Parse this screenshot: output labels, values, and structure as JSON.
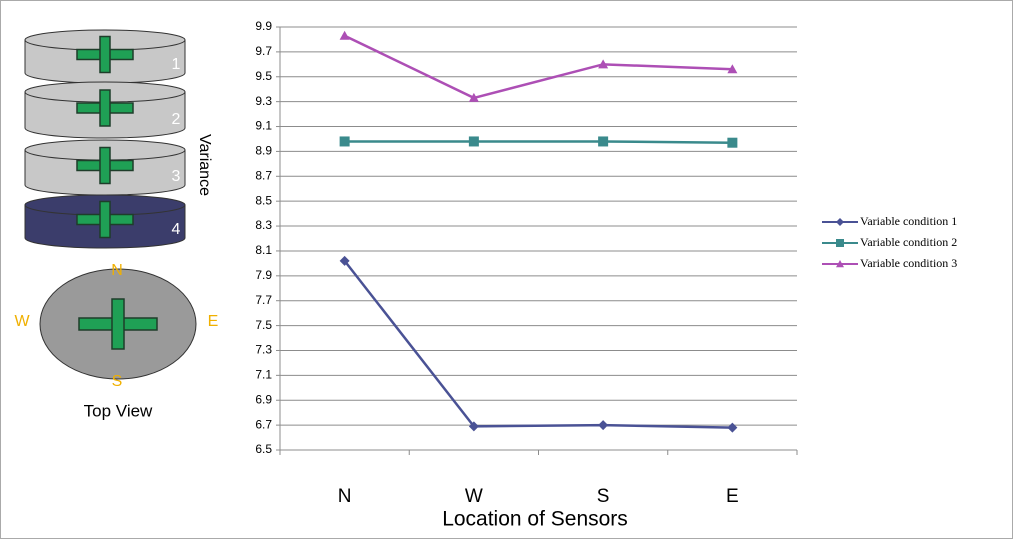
{
  "chart_data": {
    "type": "line",
    "y_label": "Variance",
    "x_label": "Location of Sensors",
    "categories": [
      "N",
      "W",
      "S",
      "E"
    ],
    "series": [
      {
        "name": "Variable condition 1",
        "color": "#4a5295",
        "marker": "diamond",
        "values": [
          8.02,
          6.69,
          6.7,
          6.68
        ]
      },
      {
        "name": "Variable condition 2",
        "color": "#3a8a8c",
        "marker": "square",
        "values": [
          8.98,
          8.98,
          8.98,
          8.97
        ]
      },
      {
        "name": "Variable condition 3",
        "color": "#ad4fb5",
        "marker": "triangle",
        "values": [
          9.83,
          9.33,
          9.6,
          9.56
        ]
      }
    ],
    "ylim": [
      6.5,
      9.9
    ],
    "yticks": [
      6.5,
      6.7,
      6.9,
      7.1,
      7.3,
      7.5,
      7.7,
      7.9,
      8.1,
      8.3,
      8.5,
      8.7,
      8.9,
      9.1,
      9.3,
      9.5,
      9.7,
      9.9
    ],
    "grid": true,
    "legend": "right"
  },
  "diagram": {
    "disc_labels": [
      "1",
      "2",
      "3",
      "4"
    ],
    "compass": [
      "N",
      "W",
      "E",
      "S"
    ],
    "caption": "Top View"
  }
}
